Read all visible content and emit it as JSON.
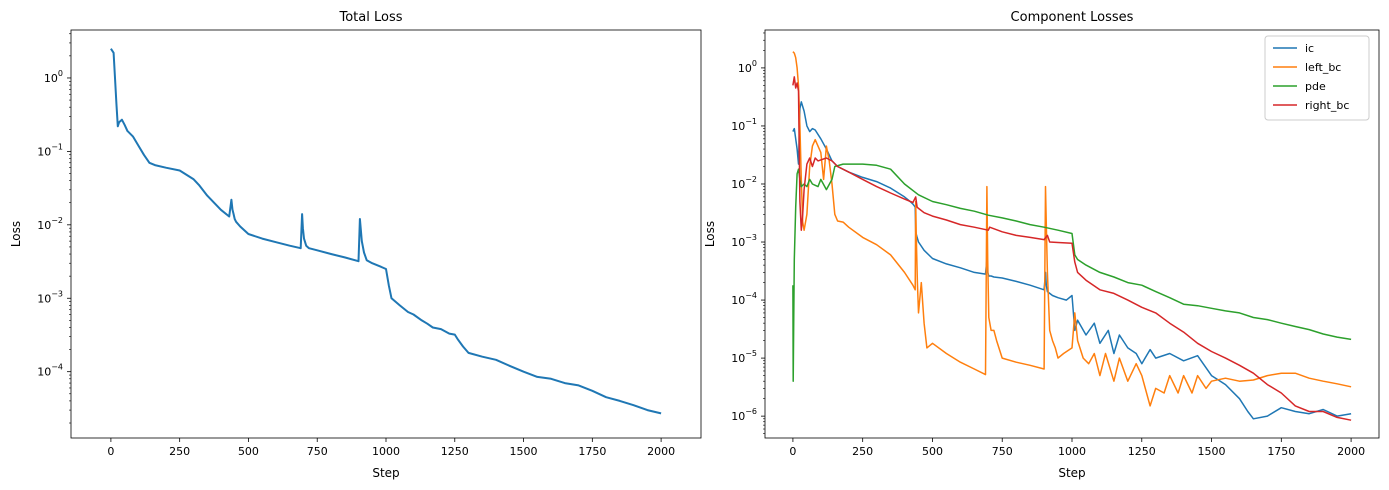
{
  "chart_data": [
    {
      "type": "line",
      "title": "Total Loss",
      "xlabel": "Step",
      "ylabel": "Loss",
      "yscale": "log",
      "xlim": [
        -145,
        2145
      ],
      "ylim": [
        1.25e-05,
        4.5
      ],
      "xticks": [
        0,
        250,
        500,
        750,
        1000,
        1250,
        1500,
        1750,
        2000
      ],
      "yticks": [
        {
          "value": 0.0001,
          "base": "10",
          "exp": "−4"
        },
        {
          "value": 0.001,
          "base": "10",
          "exp": "−3"
        },
        {
          "value": 0.01,
          "base": "10",
          "exp": "−2"
        },
        {
          "value": 0.1,
          "base": "10",
          "exp": "−1"
        },
        {
          "value": 1,
          "base": "10",
          "exp": "0"
        }
      ],
      "series": [
        {
          "color": "#1f77b4",
          "x": [
            0,
            10,
            15,
            20,
            25,
            30,
            40,
            50,
            60,
            80,
            100,
            120,
            140,
            160,
            200,
            250,
            300,
            320,
            350,
            400,
            430,
            438,
            442,
            446,
            450,
            455,
            470,
            500,
            550,
            600,
            650,
            690,
            695,
            698,
            702,
            710,
            720,
            750,
            800,
            850,
            900,
            905,
            908,
            912,
            920,
            930,
            950,
            980,
            1000,
            1010,
            1020,
            1050,
            1080,
            1100,
            1130,
            1150,
            1170,
            1200,
            1230,
            1250,
            1260,
            1280,
            1300,
            1350,
            1400,
            1450,
            1500,
            1550,
            1600,
            1650,
            1700,
            1750,
            1800,
            1850,
            1900,
            1950,
            2000
          ],
          "y": [
            2.5,
            2.2,
            1.0,
            0.45,
            0.22,
            0.25,
            0.27,
            0.23,
            0.19,
            0.16,
            0.12,
            0.09,
            0.07,
            0.065,
            0.06,
            0.055,
            0.042,
            0.035,
            0.025,
            0.016,
            0.013,
            0.022,
            0.016,
            0.014,
            0.012,
            0.011,
            0.0095,
            0.0075,
            0.0065,
            0.0058,
            0.0052,
            0.0048,
            0.014,
            0.009,
            0.0065,
            0.0052,
            0.0048,
            0.0045,
            0.004,
            0.0036,
            0.0032,
            0.012,
            0.009,
            0.006,
            0.0042,
            0.0033,
            0.003,
            0.0027,
            0.0025,
            0.0015,
            0.001,
            0.0008,
            0.00065,
            0.0006,
            0.0005,
            0.00045,
            0.0004,
            0.00038,
            0.00033,
            0.00032,
            0.00028,
            0.00022,
            0.00018,
            0.00016,
            0.000145,
            0.00012,
            0.0001,
            8.5e-05,
            8e-05,
            7e-05,
            6.5e-05,
            5.5e-05,
            4.5e-05,
            4e-05,
            3.5e-05,
            3e-05,
            2.7e-05
          ]
        }
      ]
    },
    {
      "type": "line",
      "title": "Component Losses",
      "xlabel": "Step",
      "ylabel": "Loss",
      "yscale": "log",
      "xlim": [
        -100,
        2100
      ],
      "ylim": [
        4.2e-07,
        4.5
      ],
      "xticks": [
        0,
        250,
        500,
        750,
        1000,
        1250,
        1500,
        1750,
        2000
      ],
      "yticks": [
        {
          "value": 1e-06,
          "base": "10",
          "exp": "−6"
        },
        {
          "value": 1e-05,
          "base": "10",
          "exp": "−5"
        },
        {
          "value": 0.0001,
          "base": "10",
          "exp": "−4"
        },
        {
          "value": 0.001,
          "base": "10",
          "exp": "−3"
        },
        {
          "value": 0.01,
          "base": "10",
          "exp": "−2"
        },
        {
          "value": 0.1,
          "base": "10",
          "exp": "−1"
        },
        {
          "value": 1,
          "base": "10",
          "exp": "0"
        }
      ],
      "legend_position": "upper-right",
      "series": [
        {
          "name": "ic",
          "color": "#1f77b4",
          "x": [
            0,
            5,
            10,
            15,
            20,
            25,
            30,
            40,
            50,
            60,
            70,
            80,
            100,
            120,
            140,
            160,
            200,
            250,
            300,
            350,
            400,
            420,
            430,
            438,
            440,
            445,
            450,
            470,
            500,
            550,
            600,
            650,
            690,
            695,
            698,
            702,
            710,
            720,
            750,
            800,
            850,
            900,
            905,
            908,
            912,
            920,
            930,
            950,
            980,
            1000,
            1010,
            1020,
            1050,
            1080,
            1100,
            1130,
            1150,
            1170,
            1200,
            1230,
            1250,
            1280,
            1300,
            1350,
            1400,
            1450,
            1500,
            1550,
            1600,
            1630,
            1650,
            1700,
            1750,
            1800,
            1850,
            1900,
            1950,
            2000
          ],
          "y": [
            0.08,
            0.09,
            0.06,
            0.04,
            0.022,
            0.2,
            0.26,
            0.18,
            0.1,
            0.08,
            0.09,
            0.085,
            0.06,
            0.04,
            0.025,
            0.02,
            0.016,
            0.013,
            0.011,
            0.0085,
            0.006,
            0.005,
            0.0045,
            0.004,
            0.0015,
            0.0012,
            0.001,
            0.00072,
            0.00052,
            0.00042,
            0.00036,
            0.0003,
            0.00028,
            0.0005,
            0.0003,
            0.00026,
            0.00026,
            0.00025,
            0.00024,
            0.00021,
            0.00018,
            0.00015,
            0.0003,
            0.00018,
            0.00014,
            0.00013,
            0.00012,
            0.00011,
            0.0001,
            0.00012,
            3e-05,
            4.5e-05,
            2.5e-05,
            4e-05,
            1.8e-05,
            3e-05,
            1.2e-05,
            2.5e-05,
            1.5e-05,
            1.2e-05,
            8e-06,
            1.4e-05,
            1e-05,
            1.2e-05,
            9e-06,
            1.1e-05,
            5e-06,
            3.5e-06,
            2e-06,
            1.2e-06,
            9e-07,
            1e-06,
            1.4e-06,
            1.2e-06,
            1.1e-06,
            1.3e-06,
            1e-06,
            1.1e-06
          ]
        },
        {
          "name": "left_bc",
          "color": "#ff7f0e",
          "x": [
            0,
            5,
            10,
            15,
            20,
            25,
            30,
            35,
            40,
            50,
            60,
            70,
            80,
            100,
            110,
            120,
            130,
            140,
            150,
            160,
            180,
            200,
            250,
            300,
            350,
            400,
            430,
            438,
            440,
            442,
            446,
            450,
            460,
            470,
            480,
            500,
            550,
            600,
            650,
            690,
            695,
            698,
            702,
            710,
            720,
            730,
            750,
            800,
            850,
            900,
            905,
            908,
            912,
            920,
            930,
            940,
            950,
            970,
            1000,
            1010,
            1020,
            1040,
            1060,
            1080,
            1100,
            1120,
            1150,
            1170,
            1200,
            1230,
            1250,
            1280,
            1300,
            1330,
            1350,
            1380,
            1400,
            1430,
            1450,
            1480,
            1500,
            1550,
            1600,
            1650,
            1700,
            1750,
            1800,
            1850,
            1900,
            1950,
            2000
          ],
          "y": [
            1.9,
            1.8,
            1.5,
            1.0,
            0.5,
            0.1,
            0.012,
            0.0022,
            0.0016,
            0.003,
            0.02,
            0.045,
            0.058,
            0.035,
            0.012,
            0.045,
            0.025,
            0.01,
            0.003,
            0.0023,
            0.0022,
            0.0018,
            0.0012,
            0.0009,
            0.0006,
            0.0003,
            0.00018,
            0.00015,
            0.005,
            0.0012,
            0.0002,
            6e-05,
            0.0002,
            4e-05,
            1.5e-05,
            1.8e-05,
            1.2e-05,
            8.5e-06,
            6.5e-06,
            5.2e-06,
            0.009,
            0.0005,
            5e-05,
            3e-05,
            3e-05,
            2e-05,
            1e-05,
            8.5e-06,
            7.5e-06,
            6.5e-06,
            0.009,
            0.002,
            0.0003,
            3e-05,
            2e-05,
            1.5e-05,
            1e-05,
            1.2e-05,
            1.5e-05,
            6e-05,
            2e-05,
            1e-05,
            8e-06,
            1.2e-05,
            5e-06,
            1.2e-05,
            4e-06,
            1e-05,
            4e-06,
            8e-06,
            5e-06,
            1.5e-06,
            3e-06,
            2.5e-06,
            5e-06,
            2.5e-06,
            5e-06,
            2.5e-06,
            5e-06,
            3e-06,
            4e-06,
            4.5e-06,
            4e-06,
            4.2e-06,
            5e-06,
            5.5e-06,
            5.5e-06,
            4.5e-06,
            4e-06,
            3.6e-06,
            3.2e-06
          ]
        },
        {
          "name": "pde",
          "color": "#2ca02c",
          "x": [
            0,
            1,
            3,
            5,
            10,
            15,
            20,
            25,
            30,
            40,
            50,
            60,
            70,
            80,
            90,
            100,
            120,
            140,
            150,
            180,
            200,
            250,
            300,
            350,
            400,
            450,
            500,
            550,
            600,
            650,
            700,
            750,
            800,
            850,
            900,
            950,
            1000,
            1010,
            1020,
            1050,
            1100,
            1150,
            1200,
            1250,
            1300,
            1350,
            1400,
            1450,
            1500,
            1550,
            1600,
            1650,
            1700,
            1750,
            1800,
            1850,
            1900,
            1950,
            2000
          ],
          "y": [
            0.00018,
            4e-06,
            4e-05,
            0.0005,
            0.004,
            0.015,
            0.018,
            0.012,
            0.009,
            0.01,
            0.009,
            0.012,
            0.01,
            0.0095,
            0.009,
            0.012,
            0.008,
            0.012,
            0.02,
            0.022,
            0.022,
            0.022,
            0.021,
            0.018,
            0.01,
            0.0065,
            0.005,
            0.0044,
            0.0038,
            0.0034,
            0.0029,
            0.0026,
            0.0023,
            0.002,
            0.0018,
            0.0016,
            0.0014,
            0.0006,
            0.0005,
            0.0004,
            0.0003,
            0.00025,
            0.0002,
            0.00018,
            0.00014,
            0.00011,
            8.5e-05,
            8e-05,
            7.2e-05,
            6.5e-05,
            6e-05,
            5e-05,
            4.6e-05,
            4e-05,
            3.5e-05,
            3.1e-05,
            2.6e-05,
            2.3e-05,
            2.1e-05
          ]
        },
        {
          "name": "right_bc",
          "color": "#d62728",
          "x": [
            0,
            5,
            10,
            15,
            20,
            25,
            30,
            35,
            40,
            50,
            60,
            70,
            80,
            90,
            100,
            120,
            140,
            160,
            200,
            250,
            300,
            350,
            400,
            430,
            440,
            445,
            450,
            470,
            500,
            550,
            600,
            650,
            700,
            705,
            750,
            800,
            850,
            900,
            912,
            920,
            950,
            1000,
            1010,
            1020,
            1050,
            1100,
            1150,
            1200,
            1250,
            1300,
            1350,
            1400,
            1450,
            1500,
            1550,
            1600,
            1650,
            1700,
            1750,
            1800,
            1850,
            1900,
            1950,
            2000
          ],
          "y": [
            0.5,
            0.7,
            0.45,
            0.55,
            0.4,
            0.005,
            0.0016,
            0.003,
            0.008,
            0.022,
            0.028,
            0.02,
            0.028,
            0.025,
            0.026,
            0.028,
            0.025,
            0.02,
            0.016,
            0.012,
            0.009,
            0.007,
            0.0055,
            0.0048,
            0.006,
            0.004,
            0.0038,
            0.0032,
            0.0028,
            0.0024,
            0.002,
            0.0018,
            0.0016,
            0.0018,
            0.0015,
            0.0013,
            0.0012,
            0.0011,
            0.0013,
            0.001,
            0.00098,
            0.00095,
            0.00045,
            0.0003,
            0.00022,
            0.00015,
            0.00013,
            0.0001,
            7.5e-05,
            6e-05,
            4e-05,
            2.8e-05,
            1.8e-05,
            1.3e-05,
            1e-05,
            7.5e-06,
            5.5e-06,
            3.5e-06,
            2.5e-06,
            1.5e-06,
            1.2e-06,
            1.2e-06,
            9.5e-07,
            8.5e-07
          ]
        }
      ]
    }
  ]
}
